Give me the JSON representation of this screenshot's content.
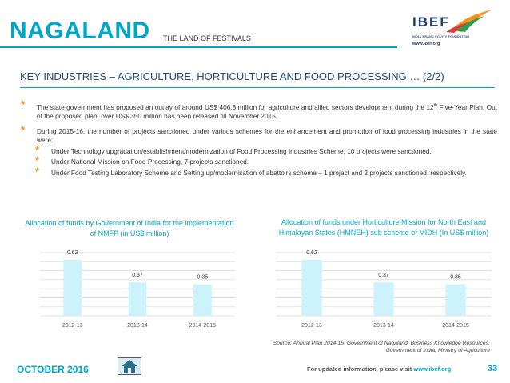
{
  "header": {
    "state_name": "NAGALAND",
    "tagline": "THE LAND OF FESTIVALS",
    "logo_word": "IBEF",
    "logo_sub": "INDIA BRAND EQUITY FOUNDATION",
    "logo_url": "www.ibef.org"
  },
  "title": "KEY INDUSTRIES – AGRICULTURE, HORTICULTURE AND FOOD PROCESSING … (2/2)",
  "bullets": {
    "b1_part1": "The state government has proposed an outlay of around US$ 406.8 million for agriculture and allied sectors development during the 12",
    "b1_sup": "th",
    "b1_part2": " Five-Year Plan. Out of the proposed plan, over US$ 350 million has been released till November 2015.",
    "b2": "During 2015-16, the number of projects sanctioned under various schemes for the enhancement and promotion of food processing industries in the state were:",
    "sub": [
      "Under Technology upgradation/establishment/modernization of Food Processing Industries Scheme, 10 projects were sanctioned.",
      "Under National Mission on Food Processing, 7 projects sanctioned.",
      "Under Food Testing Laboratory Scheme and Setting up/modernisation of abattoirs scheme – 1 project and 2 projects sanctioned, respectively."
    ]
  },
  "chart_data": [
    {
      "type": "bar",
      "title": "Allocation of funds by Government of India for the implementation of NMFP (in US$ million)",
      "categories": [
        "2012-13",
        "2013-14",
        "2014-2015"
      ],
      "values": [
        0.62,
        0.37,
        0.35
      ],
      "value_labels": [
        "0.62",
        "0.37",
        "0.35"
      ],
      "ylim": [
        0,
        0.7
      ],
      "grid": true,
      "bar_color": "#ccf2fb",
      "grid_color": "#d9d9d9"
    },
    {
      "type": "bar",
      "title": "Allocation of funds under Horticulture Mission for North East and Himalayan States (HMNEH) sub scheme of MIDH (In US$ million)",
      "categories": [
        "2012-13",
        "2013-14",
        "2014-2015"
      ],
      "values": [
        0.62,
        0.37,
        0.35
      ],
      "value_labels": [
        "0.62",
        "0.37",
        "0.35"
      ],
      "ylim": [
        0,
        0.7
      ],
      "grid": true,
      "bar_color": "#ccf2fb",
      "grid_color": "#d9d9d9"
    }
  ],
  "source": {
    "label": "Source",
    "text": ": Annual Plan 2014-15, Government of Nagaland, Business Knowledge Resources, Government of India, Ministry of Agriculture"
  },
  "footer": {
    "month": "OCTOBER 2016",
    "link_text": "For updated information, please visit ",
    "link_url": "www.ibef.org",
    "page_number": "33"
  },
  "colors": {
    "accent": "#00a6c9",
    "bullet_star": "#f7941d",
    "title_blue": "#1e4a7a"
  },
  "icons": {
    "home": "home-icon",
    "bullet": "star-bullet-icon"
  }
}
